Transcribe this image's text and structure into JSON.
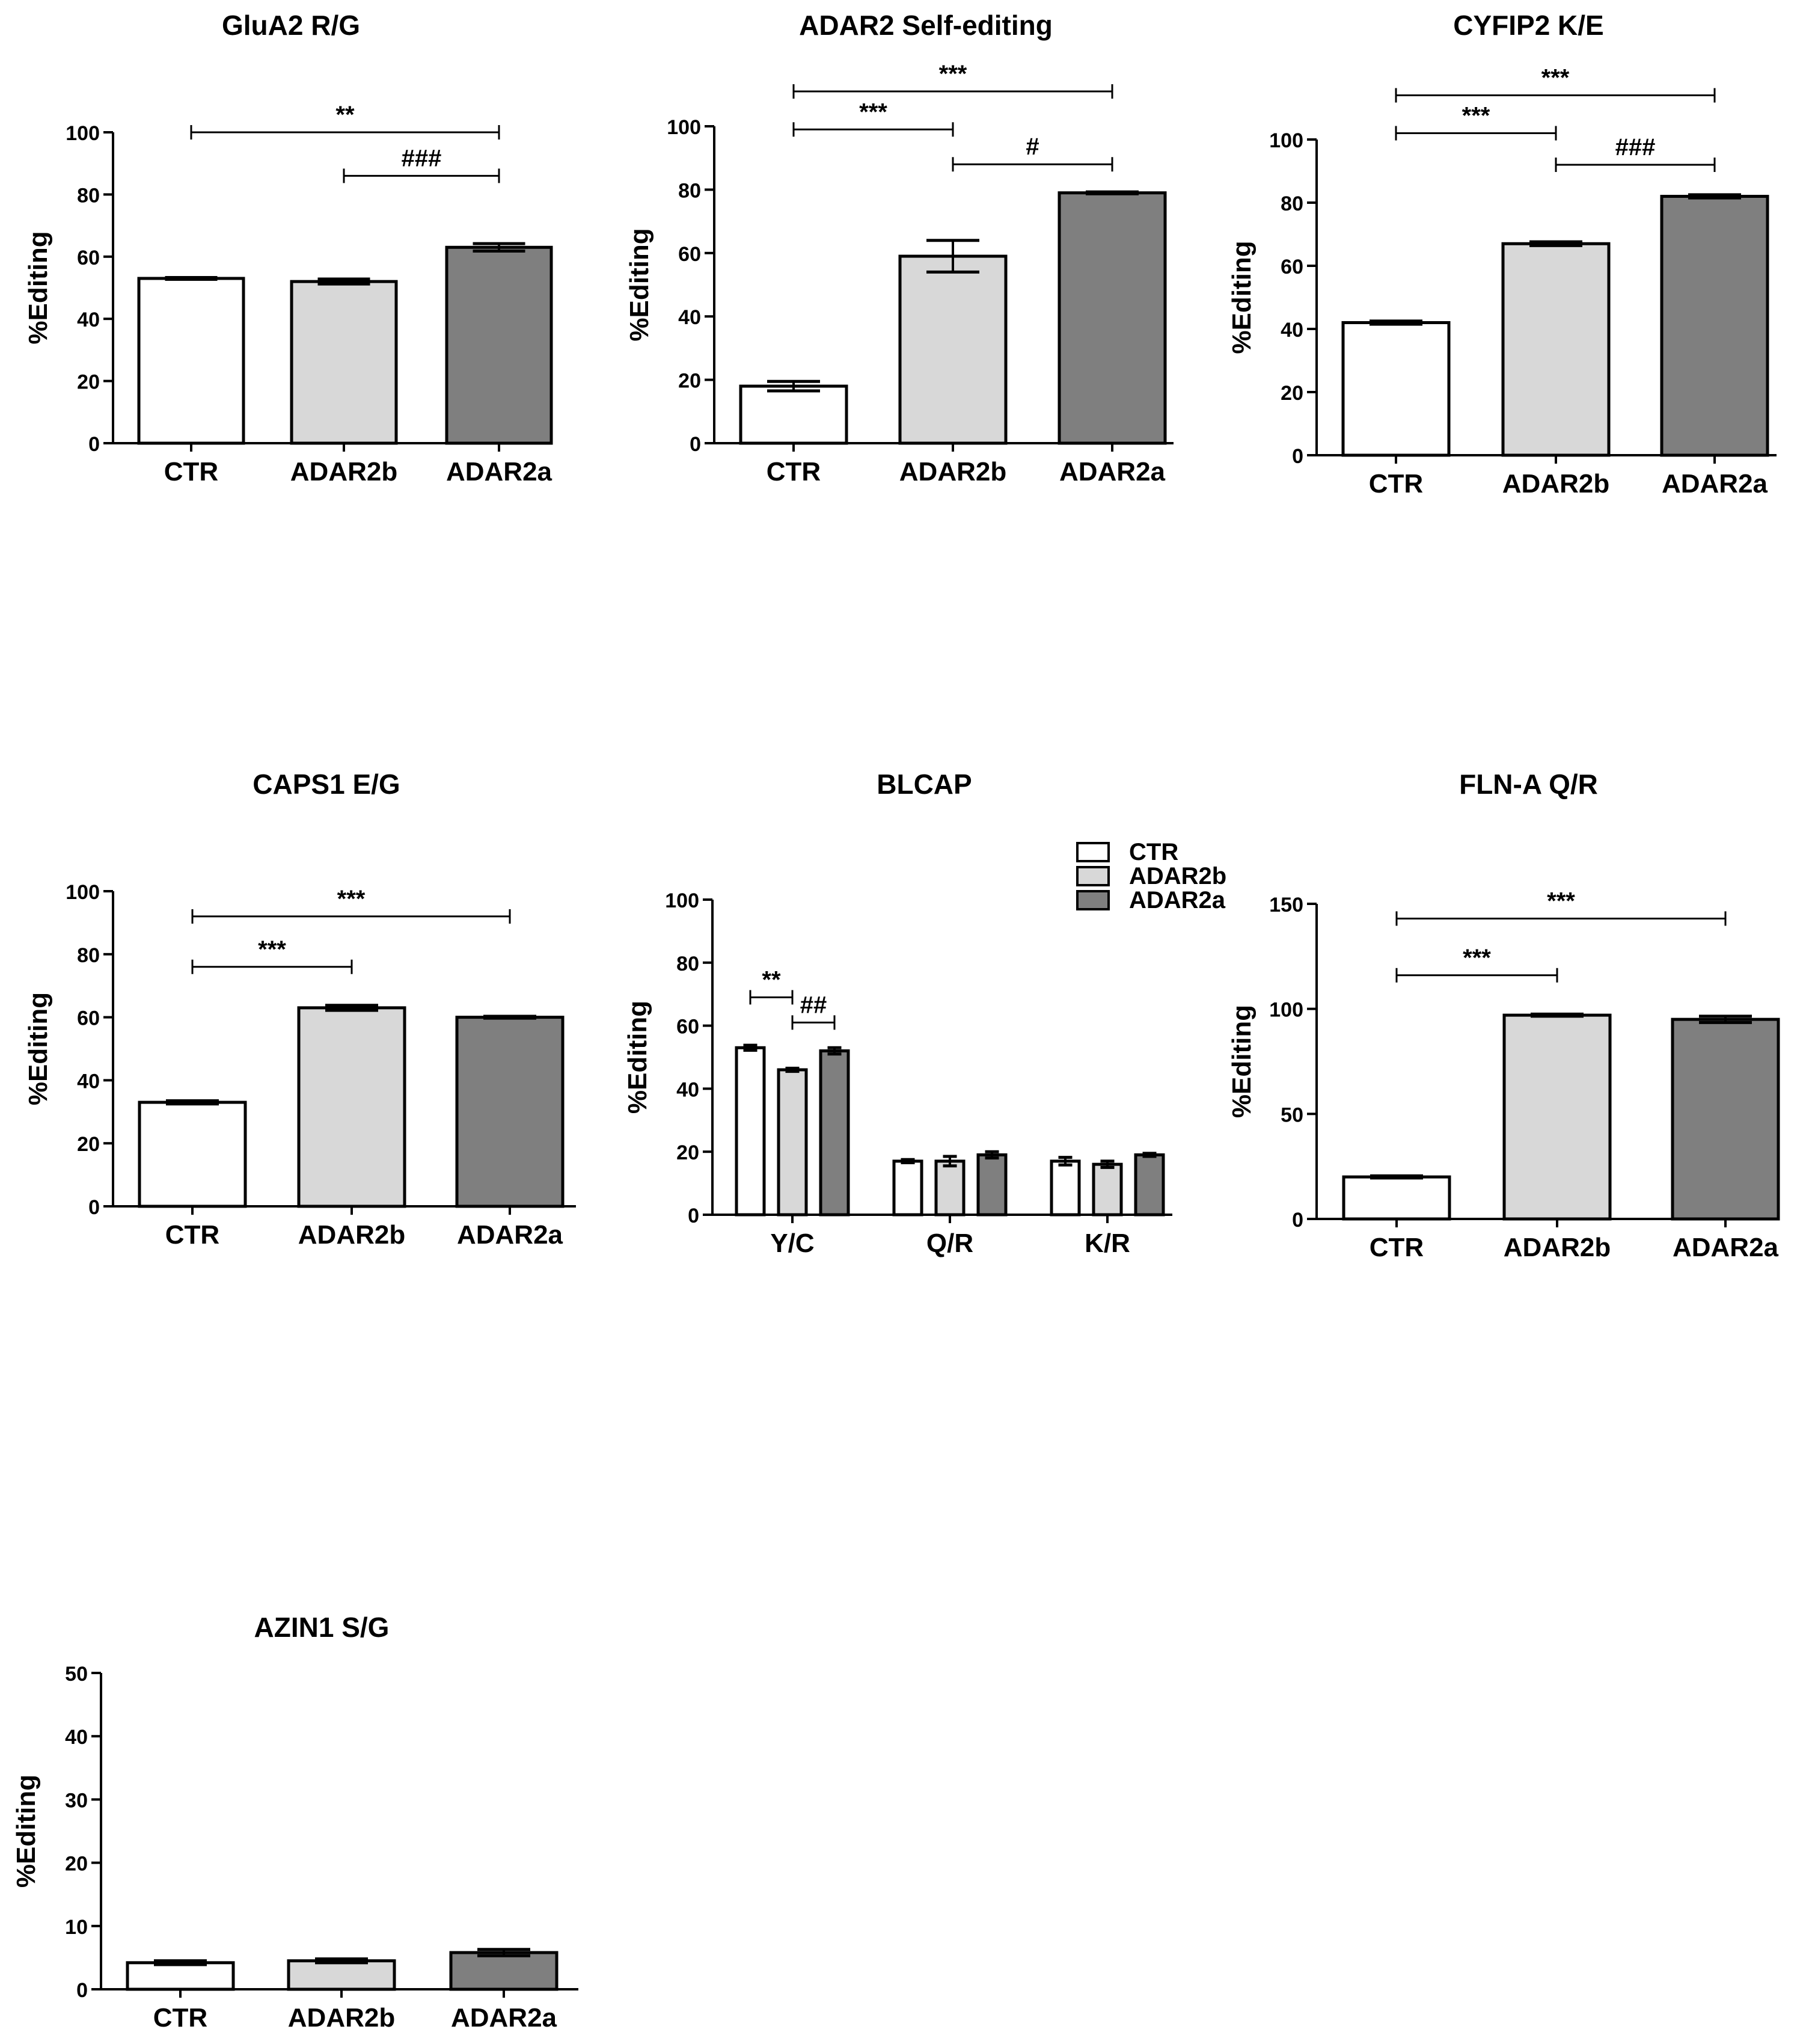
{
  "colors": {
    "CTR": "#ffffff",
    "ADAR2b": "#d8d8d8",
    "ADAR2a": "#7f7f7f",
    "axis": "#000000"
  },
  "legend": [
    {
      "label": "CTR",
      "color": "#ffffff"
    },
    {
      "label": "ADAR2b",
      "color": "#d8d8d8"
    },
    {
      "label": "ADAR2a",
      "color": "#7f7f7f"
    }
  ],
  "chart_data": [
    {
      "id": "glua2",
      "type": "bar",
      "title": "GluA2 R/G",
      "ylabel": "%Editing",
      "ylim": [
        0,
        100
      ],
      "yticks": [
        0,
        20,
        40,
        60,
        80,
        100
      ],
      "categories": [
        "CTR",
        "ADAR2b",
        "ADAR2a"
      ],
      "values": [
        53,
        52,
        63
      ],
      "errors": [
        0.3,
        0.8,
        1.2
      ],
      "significance": [
        {
          "from": 0,
          "to": 2,
          "label": "**",
          "y": 100
        },
        {
          "from": 1,
          "to": 2,
          "label": "###",
          "y": 86
        }
      ]
    },
    {
      "id": "adar2",
      "type": "bar",
      "title": "ADAR2 Self-editing",
      "ylabel": "%Editing",
      "ylim": [
        0,
        100
      ],
      "yticks": [
        0,
        20,
        40,
        60,
        80,
        100
      ],
      "categories": [
        "CTR",
        "ADAR2b",
        "ADAR2a"
      ],
      "values": [
        18,
        59,
        79
      ],
      "errors": [
        1.5,
        5,
        0.3
      ],
      "significance": [
        {
          "from": 0,
          "to": 2,
          "label": "***",
          "y": 111
        },
        {
          "from": 0,
          "to": 1,
          "label": "***",
          "y": 99
        },
        {
          "from": 1,
          "to": 2,
          "label": "#",
          "y": 88
        }
      ]
    },
    {
      "id": "cyfip2",
      "type": "bar",
      "title": "CYFIP2 K/E",
      "ylabel": "%Editing",
      "ylim": [
        0,
        100
      ],
      "yticks": [
        0,
        20,
        40,
        60,
        80,
        100
      ],
      "categories": [
        "CTR",
        "ADAR2b",
        "ADAR2a"
      ],
      "values": [
        42,
        67,
        82
      ],
      "errors": [
        0.5,
        0.6,
        0.5
      ],
      "significance": [
        {
          "from": 0,
          "to": 2,
          "label": "***",
          "y": 114
        },
        {
          "from": 0,
          "to": 1,
          "label": "***",
          "y": 102
        },
        {
          "from": 1,
          "to": 2,
          "label": "###",
          "y": 92
        }
      ]
    },
    {
      "id": "caps1",
      "type": "bar",
      "title": "CAPS1 E/G",
      "ylabel": "%Editing",
      "ylim": [
        0,
        100
      ],
      "yticks": [
        0,
        20,
        40,
        60,
        80,
        100
      ],
      "categories": [
        "CTR",
        "ADAR2b",
        "ADAR2a"
      ],
      "values": [
        33,
        63,
        60
      ],
      "errors": [
        0.5,
        0.8,
        0.3
      ],
      "significance": [
        {
          "from": 0,
          "to": 2,
          "label": "***",
          "y": 92
        },
        {
          "from": 0,
          "to": 1,
          "label": "***",
          "y": 76
        }
      ]
    },
    {
      "id": "blcap",
      "type": "grouped-bar",
      "title": "BLCAP",
      "ylabel": "%Editing",
      "ylim": [
        0,
        100
      ],
      "yticks": [
        0,
        20,
        40,
        60,
        80,
        100
      ],
      "categories": [
        "Y/C",
        "Q/R",
        "K/R"
      ],
      "series": [
        {
          "name": "CTR",
          "values": [
            53,
            17,
            17
          ],
          "errors": [
            0.8,
            0.5,
            1.2
          ]
        },
        {
          "name": "ADAR2b",
          "values": [
            46,
            17,
            16
          ],
          "errors": [
            0.5,
            1.5,
            1
          ]
        },
        {
          "name": "ADAR2a",
          "values": [
            52,
            19,
            19
          ],
          "errors": [
            1,
            1,
            0.5
          ]
        }
      ],
      "significance": [
        {
          "group": 0,
          "from": 0,
          "to": 1,
          "label": "**",
          "y": 69
        },
        {
          "group": 0,
          "from": 1,
          "to": 2,
          "label": "##",
          "y": 61
        }
      ],
      "legend_position": "top-right"
    },
    {
      "id": "flna",
      "type": "bar",
      "title": "FLN-A Q/R",
      "ylabel": "%Editing",
      "ylim": [
        0,
        150
      ],
      "yticks": [
        0,
        50,
        100,
        150
      ],
      "categories": [
        "CTR",
        "ADAR2b",
        "ADAR2a"
      ],
      "values": [
        20,
        97,
        95
      ],
      "errors": [
        0.5,
        0.5,
        1.5
      ],
      "significance": [
        {
          "from": 0,
          "to": 2,
          "label": "***",
          "y": 143
        },
        {
          "from": 0,
          "to": 1,
          "label": "***",
          "y": 116
        }
      ]
    },
    {
      "id": "azin1",
      "type": "bar",
      "title": "AZIN1 S/G",
      "ylabel": "%Editing",
      "ylim": [
        0,
        50
      ],
      "yticks": [
        0,
        10,
        20,
        30,
        40,
        50
      ],
      "categories": [
        "CTR",
        "ADAR2b",
        "ADAR2a"
      ],
      "values": [
        4.2,
        4.5,
        5.8
      ],
      "errors": [
        0.3,
        0.3,
        0.5
      ],
      "significance": []
    }
  ]
}
